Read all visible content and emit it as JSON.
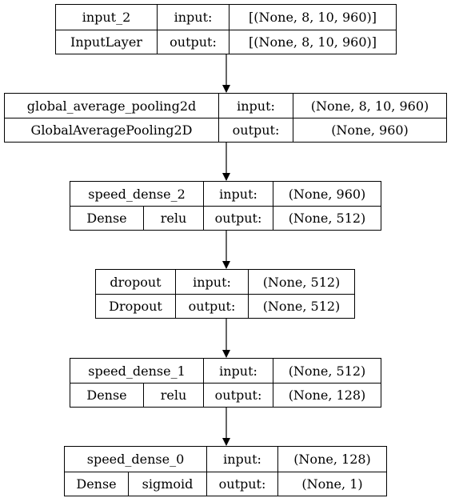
{
  "layers": [
    {
      "name": "input_2",
      "class_name": "InputLayer",
      "activation": "",
      "input_label": "input:",
      "output_label": "output:",
      "input_shape": "[(None, 8, 10, 960)]",
      "output_shape": "[(None, 8, 10, 960)]"
    },
    {
      "name": "global_average_pooling2d",
      "class_name": "GlobalAveragePooling2D",
      "activation": "",
      "input_label": "input:",
      "output_label": "output:",
      "input_shape": "(None, 8, 10, 960)",
      "output_shape": "(None, 960)"
    },
    {
      "name": "speed_dense_2",
      "class_name": "Dense",
      "activation": "relu",
      "input_label": "input:",
      "output_label": "output:",
      "input_shape": "(None, 960)",
      "output_shape": "(None, 512)"
    },
    {
      "name": "dropout",
      "class_name": "Dropout",
      "activation": "",
      "input_label": "input:",
      "output_label": "output:",
      "input_shape": "(None, 512)",
      "output_shape": "(None, 512)"
    },
    {
      "name": "speed_dense_1",
      "class_name": "Dense",
      "activation": "relu",
      "input_label": "input:",
      "output_label": "output:",
      "input_shape": "(None, 512)",
      "output_shape": "(None, 128)"
    },
    {
      "name": "speed_dense_0",
      "class_name": "Dense",
      "activation": "sigmoid",
      "input_label": "input:",
      "output_label": "output:",
      "input_shape": "(None, 128)",
      "output_shape": "(None, 1)"
    }
  ]
}
